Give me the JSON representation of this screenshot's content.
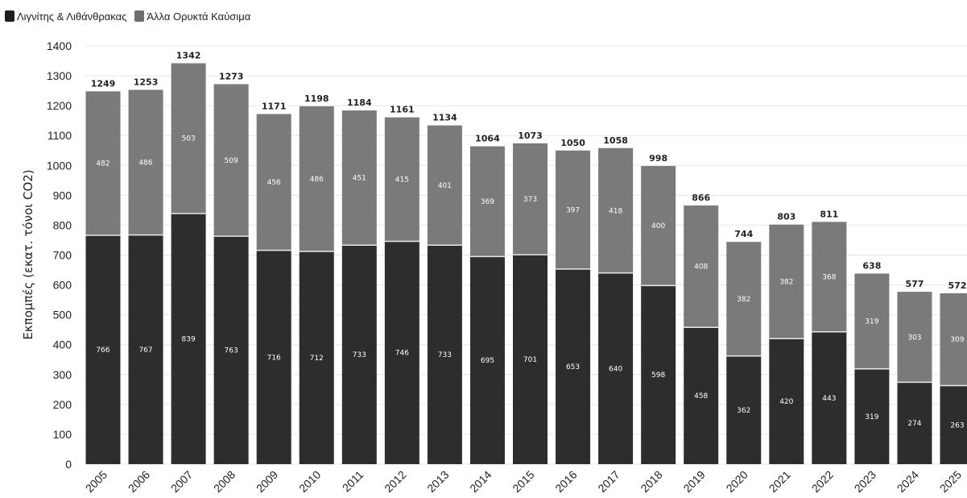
{
  "legend": {
    "items": [
      {
        "label": "Λιγνίτης & Λιθάνθρακας",
        "color": "#1f1f1f"
      },
      {
        "label": "Άλλα Ορυκτά Καύσιμα",
        "color": "#6e6e6e"
      }
    ]
  },
  "chart_data": {
    "type": "bar",
    "stacked": true,
    "title": "",
    "xlabel": "",
    "ylabel": "Εκπομπές (εκατ. τόνοι CO2)",
    "ylim": [
      0,
      1400
    ],
    "yticks": [
      0,
      100,
      200,
      300,
      400,
      500,
      600,
      700,
      800,
      900,
      1000,
      1100,
      1200,
      1300,
      1400
    ],
    "grid": true,
    "legend_position": "top-left",
    "categories": [
      "2005",
      "2006",
      "2007",
      "2008",
      "2009",
      "2010",
      "2011",
      "2012",
      "2013",
      "2014",
      "2015",
      "2016",
      "2017",
      "2018",
      "2019",
      "2020",
      "2021",
      "2022",
      "2023",
      "2024",
      "2025"
    ],
    "series": [
      {
        "name": "Λιγνίτης & Λιθάνθρακας",
        "color": "#2d2d2d",
        "values": [
          766,
          767,
          839,
          763,
          716,
          712,
          733,
          746,
          733,
          695,
          701,
          653,
          640,
          598,
          458,
          362,
          420,
          443,
          319,
          274,
          263
        ]
      },
      {
        "name": "Άλλα Ορυκτά Καύσιμα",
        "color": "#7a7a7a",
        "values": [
          482,
          486,
          503,
          509,
          456,
          486,
          451,
          415,
          401,
          369,
          373,
          397,
          418,
          400,
          408,
          382,
          382,
          368,
          319,
          303,
          309
        ]
      }
    ],
    "totals": [
      1249,
      1253,
      1342,
      1273,
      1171,
      1198,
      1184,
      1161,
      1134,
      1064,
      1073,
      1050,
      1058,
      998,
      866,
      744,
      803,
      811,
      638,
      577,
      572
    ]
  }
}
